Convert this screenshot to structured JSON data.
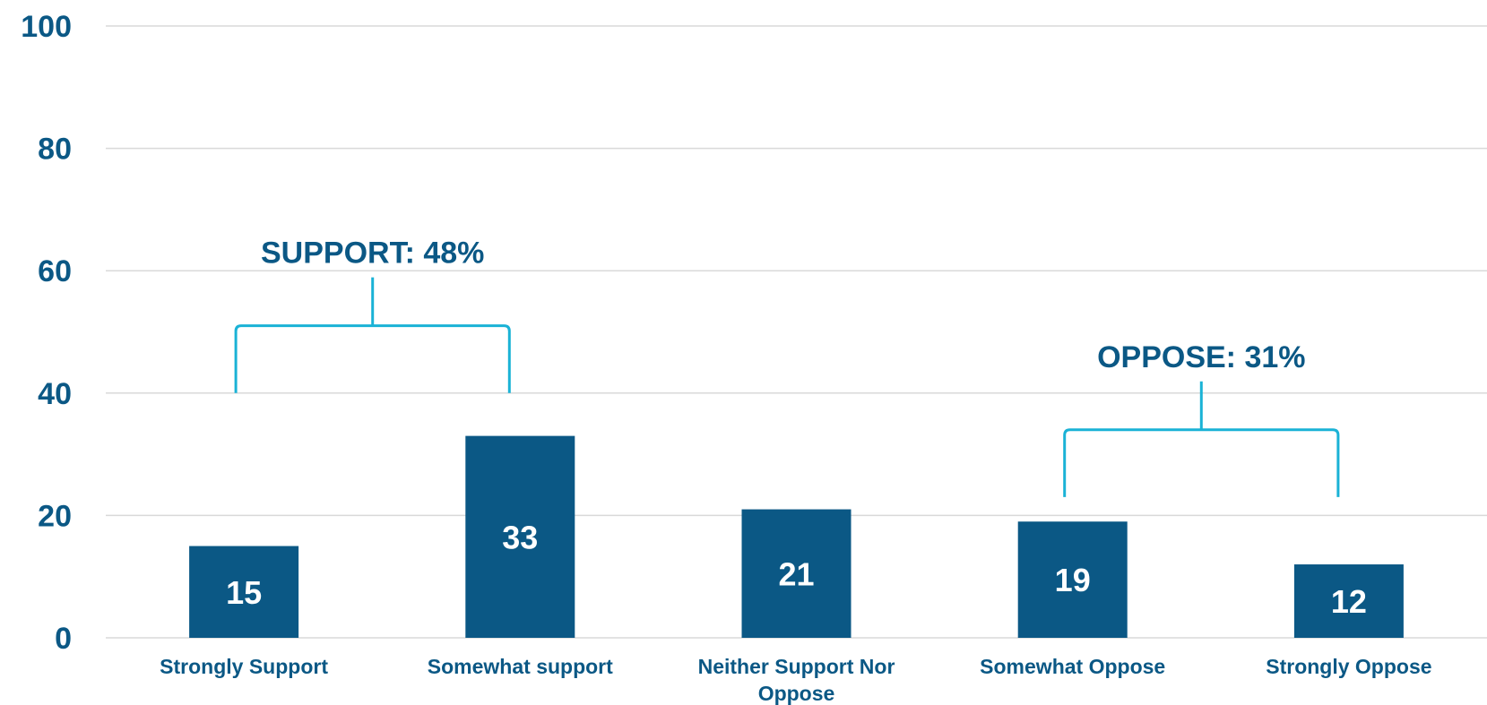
{
  "chart_data": {
    "type": "bar",
    "categories": [
      "Strongly Support",
      "Somewhat support",
      "Neither Support Nor Oppose",
      "Somewhat Oppose",
      "Strongly Oppose"
    ],
    "category_lines": [
      [
        "Strongly Support"
      ],
      [
        "Somewhat support"
      ],
      [
        "Neither Support Nor",
        "Oppose"
      ],
      [
        "Somewhat Oppose"
      ],
      [
        "Strongly Oppose"
      ]
    ],
    "values": [
      15,
      33,
      21,
      19,
      12
    ],
    "value_labels": [
      "15",
      "33",
      "21",
      "19",
      "12"
    ],
    "yticks": [
      0,
      20,
      40,
      60,
      80,
      100
    ],
    "ytick_labels": [
      "0",
      "20",
      "40",
      "60",
      "80",
      "100"
    ],
    "ylim": [
      0,
      100
    ],
    "grid": true,
    "title": "",
    "xlabel": "",
    "ylabel": "",
    "annotations": [
      {
        "text": "SUPPORT: 48%",
        "from_category": 0,
        "to_category": 1,
        "bracket_y": 51,
        "bracket_bottom": 40,
        "label_y": 63
      },
      {
        "text": "OPPOSE: 31%",
        "from_category": 3,
        "to_category": 4,
        "bracket_y": 34,
        "bracket_bottom": 23,
        "label_y": 46
      }
    ],
    "colors": {
      "bar": "#0b5885",
      "axis_text": "#0b5885",
      "value_text": "#ffffff",
      "grid": "#d9d9d9",
      "bracket": "#1ab2d6"
    }
  }
}
